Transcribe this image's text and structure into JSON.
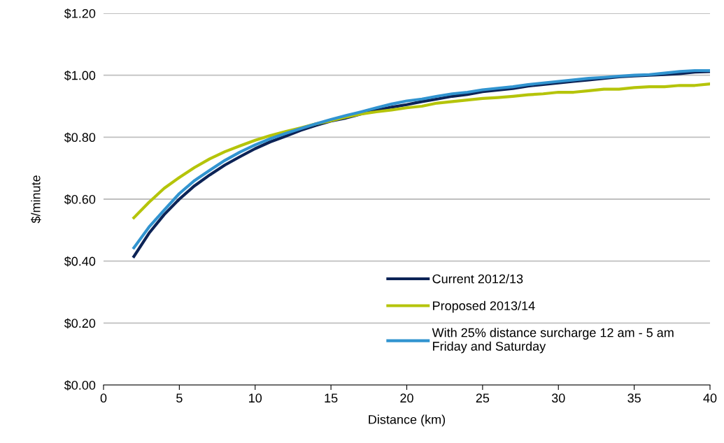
{
  "chart_data": {
    "type": "line",
    "xlabel": "Distance (km)",
    "ylabel": "$/minute",
    "x": [
      2,
      3,
      4,
      5,
      6,
      7,
      8,
      9,
      10,
      11,
      12,
      13,
      14,
      15,
      16,
      17,
      18,
      19,
      20,
      21,
      22,
      23,
      24,
      25,
      26,
      27,
      28,
      29,
      30,
      31,
      32,
      33,
      34,
      35,
      36,
      37,
      38,
      39,
      40
    ],
    "series": [
      {
        "name": "Current 2012/13",
        "color": "#0c2356",
        "values": [
          0.415,
          0.49,
          0.55,
          0.6,
          0.643,
          0.678,
          0.71,
          0.737,
          0.763,
          0.785,
          0.803,
          0.822,
          0.838,
          0.852,
          0.862,
          0.875,
          0.887,
          0.897,
          0.905,
          0.915,
          0.923,
          0.932,
          0.938,
          0.947,
          0.952,
          0.957,
          0.965,
          0.97,
          0.975,
          0.98,
          0.985,
          0.99,
          0.995,
          0.998,
          1.0,
          1.002,
          1.005,
          1.01,
          1.012
        ]
      },
      {
        "name": "Proposed 2013/14",
        "color": "#b5c40a",
        "values": [
          0.54,
          0.59,
          0.635,
          0.67,
          0.702,
          0.73,
          0.753,
          0.772,
          0.79,
          0.805,
          0.818,
          0.83,
          0.843,
          0.853,
          0.865,
          0.875,
          0.882,
          0.888,
          0.895,
          0.9,
          0.91,
          0.915,
          0.92,
          0.925,
          0.928,
          0.932,
          0.937,
          0.94,
          0.945,
          0.945,
          0.95,
          0.955,
          0.955,
          0.96,
          0.963,
          0.963,
          0.967,
          0.967,
          0.972
        ]
      },
      {
        "name": "With 25% distance surcharge 12 am - 5 am\nFriday and Saturday",
        "color": "#3194d0",
        "values": [
          0.443,
          0.51,
          0.565,
          0.618,
          0.66,
          0.693,
          0.725,
          0.752,
          0.775,
          0.795,
          0.812,
          0.828,
          0.843,
          0.857,
          0.87,
          0.882,
          0.895,
          0.907,
          0.917,
          0.923,
          0.932,
          0.94,
          0.945,
          0.953,
          0.958,
          0.963,
          0.97,
          0.975,
          0.98,
          0.985,
          0.99,
          0.993,
          0.997,
          1.0,
          1.002,
          1.007,
          1.012,
          1.015,
          1.015
        ]
      }
    ],
    "xlim": [
      0,
      40
    ],
    "xticks": [
      0,
      5,
      10,
      15,
      20,
      25,
      30,
      35,
      40
    ],
    "ylim": [
      0,
      1.2
    ],
    "yticks": [
      {
        "value": 0,
        "label": "$0.00"
      },
      {
        "value": 0.2,
        "label": "$0.20"
      },
      {
        "value": 0.4,
        "label": "$0.40"
      },
      {
        "value": 0.6,
        "label": "$0.60"
      },
      {
        "value": 0.8,
        "label": "$0.80"
      },
      {
        "value": 1.0,
        "label": "$1.00"
      },
      {
        "value": 1.2,
        "label": "$1.20"
      }
    ],
    "grid": "y",
    "legend": "bottom",
    "marker": "none",
    "line_style": "solid"
  }
}
